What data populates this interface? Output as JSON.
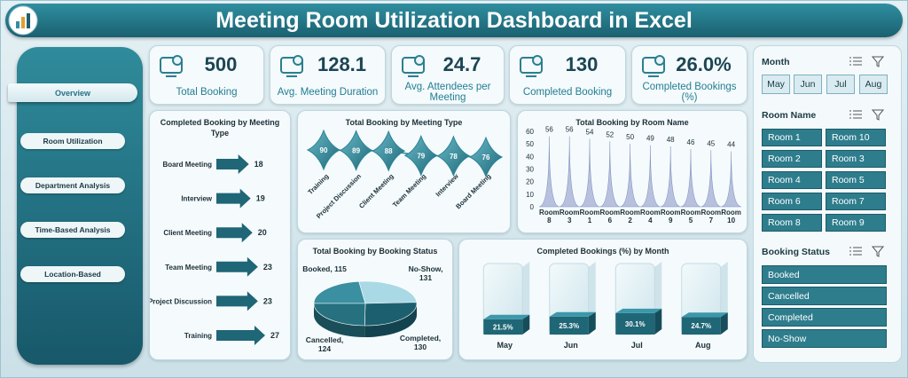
{
  "header": {
    "title": "Meeting Room Utilization Dashboard in Excel"
  },
  "nav": [
    "Overview",
    "Room Utilization",
    "Department Analysis",
    "Time-Based Analysis",
    "Location-Based"
  ],
  "kpis": [
    {
      "value": 500,
      "label": "Total Booking"
    },
    {
      "value": 128.1,
      "label": "Avg. Meeting Duration"
    },
    {
      "value": 24.7,
      "label": "Avg. Attendees per Meeting"
    },
    {
      "value": 130,
      "label": "Completed Booking"
    },
    {
      "value": "26.0%",
      "label": "Completed Bookings (%)"
    }
  ],
  "slicers": [
    {
      "title": "Month",
      "items": [
        "May",
        "Jun",
        "Jul",
        "Aug"
      ]
    },
    {
      "title": "Room Name",
      "items": [
        "Room 1",
        "Room 10",
        "Room 2",
        "Room 3",
        "Room 4",
        "Room 5",
        "Room 6",
        "Room 7",
        "Room 8",
        "Room 9"
      ]
    },
    {
      "title": "Booking Status",
      "items": [
        "Booked",
        "Cancelled",
        "Completed",
        "No-Show"
      ]
    }
  ],
  "chart_data": [
    {
      "type": "bar",
      "orientation": "horizontal",
      "title": "Completed Booking by Meeting Type",
      "categories": [
        "Board Meeting",
        "Interview",
        "Client Meeting",
        "Team Meeting",
        "Project Discussion",
        "Training"
      ],
      "values": [
        18,
        19,
        20,
        23,
        23,
        27
      ],
      "color": "#1f6676"
    },
    {
      "type": "line",
      "title": "Total Booking by Meeting Type",
      "categories": [
        "Training",
        "Project Discussion",
        "Client Meeting",
        "Team Meeting",
        "Interview",
        "Board Meeting"
      ],
      "values": [
        90,
        89,
        88,
        79,
        78,
        76
      ],
      "color": "#2b8496"
    },
    {
      "type": "area",
      "title": "Total Booking by Room Name",
      "categories": [
        "Room 8",
        "Room 3",
        "Room 1",
        "Room 6",
        "Room 2",
        "Room 4",
        "Room 9",
        "Room 5",
        "Room 7",
        "Room 10"
      ],
      "values": [
        56,
        56,
        54,
        52,
        50,
        49,
        48,
        46,
        45,
        44
      ],
      "ylim": [
        0,
        60
      ],
      "yticks": [
        0,
        10,
        20,
        30,
        40,
        50,
        60
      ],
      "color": "#b7c1de"
    },
    {
      "type": "pie",
      "title": "Total Booking by Booking Status",
      "values": [
        115,
        131,
        130,
        124
      ],
      "value_labels": [
        "Booked, 115",
        "No-Show, 131",
        "Completed, 130",
        "Cancelled, 124"
      ],
      "colors": [
        "#3a8fa1",
        "#a9d9e4",
        "#1c6070",
        "#26707f"
      ]
    },
    {
      "type": "bar",
      "orientation": "vertical",
      "title": "Completed Bookings (%) by Month",
      "categories": [
        "May",
        "Jun",
        "Jul",
        "Aug"
      ],
      "values": [
        21.5,
        25.3,
        30.1,
        24.7
      ],
      "value_labels": [
        "21.5%",
        "25.3%",
        "30.1%",
        "24.7%"
      ],
      "ylim": [
        0,
        100
      ],
      "color": "#1f6676"
    }
  ]
}
